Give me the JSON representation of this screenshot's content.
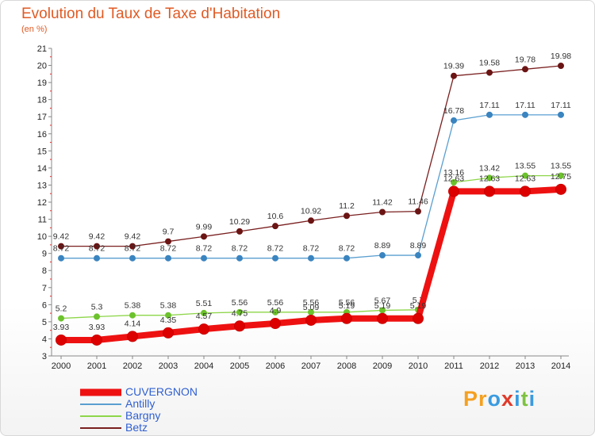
{
  "title": "Evolution du Taux de Taxe d'Habitation",
  "subtitle": "(en %)",
  "logo": {
    "text": "Proxiti",
    "letter_colors": [
      "#f5a020",
      "#f5a020",
      "#3a9be0",
      "#e03a2a",
      "#3a9be0",
      "#7dc242",
      "#3a9be0"
    ]
  },
  "colors": {
    "axis": "#888888",
    "grid": "#dcdcdc",
    "title": "#e05a24",
    "legend_text": "#2f5fd0"
  },
  "chart_data": {
    "type": "line",
    "x": [
      2000,
      2001,
      2002,
      2003,
      2004,
      2005,
      2006,
      2007,
      2008,
      2009,
      2010,
      2011,
      2012,
      2013,
      2014
    ],
    "ylim": [
      3,
      21
    ],
    "yticks": [
      3,
      4,
      5,
      6,
      7,
      8,
      9,
      10,
      11,
      12,
      13,
      14,
      15,
      16,
      17,
      18,
      19,
      20,
      21
    ],
    "grid": false,
    "legend_position": "bottom-left",
    "series": [
      {
        "name": "Betz",
        "color": "#7a1f1f",
        "marker": "#6b1414",
        "values": [
          9.42,
          9.42,
          9.42,
          9.7,
          9.99,
          10.29,
          10.6,
          10.92,
          11.2,
          11.42,
          11.46,
          19.39,
          19.58,
          19.78,
          19.98
        ],
        "labels": [
          "9.42",
          "9.42",
          "9.42",
          "9.7",
          "9.99",
          "10.29",
          "10.6",
          "10.92",
          "11.2",
          "11.42",
          "11.46",
          "19.39",
          "19.58",
          "19.78",
          "19.98"
        ]
      },
      {
        "name": "Antilly",
        "color": "#5a9fd0",
        "marker": "#3a84c0",
        "values": [
          8.72,
          8.72,
          8.72,
          8.72,
          8.72,
          8.72,
          8.72,
          8.72,
          8.72,
          8.89,
          8.89,
          16.78,
          17.11,
          17.11,
          17.11
        ],
        "labels": [
          "8.72",
          "8.72",
          "8.72",
          "8.72",
          "8.72",
          "8.72",
          "8.72",
          "8.72",
          "8.72",
          "8.89",
          "8.89",
          "16.78",
          "17.11",
          "17.11",
          "17.11"
        ]
      },
      {
        "name": "Bargny",
        "color": "#8ed64a",
        "marker": "#6cc22c",
        "values": [
          5.2,
          5.3,
          5.38,
          5.38,
          5.51,
          5.56,
          5.56,
          5.56,
          5.56,
          5.67,
          5.7,
          13.16,
          13.42,
          13.55,
          13.55
        ],
        "labels": [
          "5.2",
          "5.3",
          "5.38",
          "5.38",
          "5.51",
          "5.56",
          "5.56",
          "5.56",
          "5.56",
          "5.67",
          "5.7",
          "13.16",
          "13.42",
          "13.55",
          "13.55"
        ]
      },
      {
        "name": "CUVERGNON",
        "color": "#ee1111",
        "marker": "#dd0000",
        "values": [
          3.93,
          3.93,
          4.14,
          4.35,
          4.57,
          4.75,
          4.9,
          5.09,
          5.19,
          5.19,
          5.19,
          12.63,
          12.63,
          12.63,
          12.75
        ],
        "labels": [
          "3.93",
          "3.93",
          "4.14",
          "4.35",
          "4.57",
          "4.75",
          "4.9",
          "5.09",
          "5.19",
          "5.19",
          "5.19",
          "12.63",
          "12.63",
          "12.63",
          "12.75"
        ]
      }
    ],
    "legend_order": [
      "CUVERGNON",
      "Antilly",
      "Bargny",
      "Betz"
    ]
  }
}
